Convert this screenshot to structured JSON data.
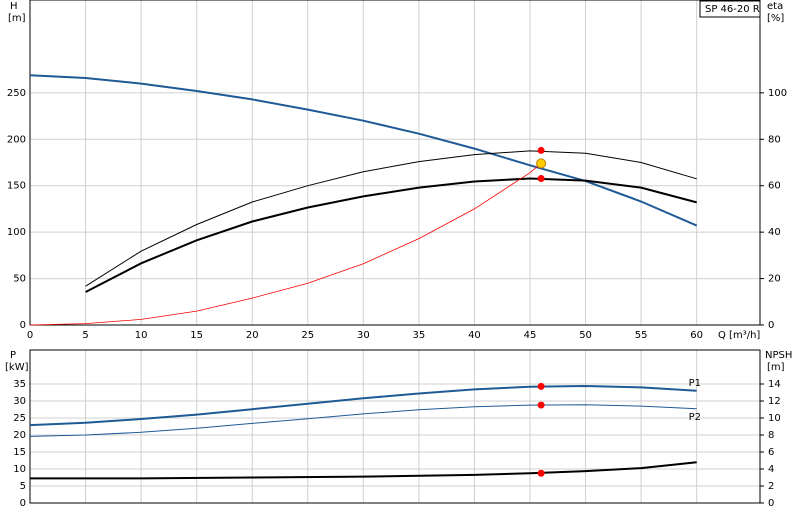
{
  "chart_data": [
    {
      "type": "line",
      "title": "SP 46-20 R",
      "y_label": "H",
      "y_unit": "[m]",
      "y2_label": "eta",
      "y2_unit": "[%]",
      "x_label": "Q [m³/h]",
      "xlim": [
        0,
        65.7
      ],
      "xticks": [
        0,
        5,
        10,
        15,
        20,
        25,
        30,
        35,
        40,
        45,
        50,
        55,
        60
      ],
      "ylim": [
        0,
        350
      ],
      "yticks": [
        0,
        50,
        100,
        150,
        200,
        250
      ],
      "y2lim": [
        0,
        140
      ],
      "y2ticks": [
        0,
        20,
        40,
        60,
        80,
        100
      ],
      "grid": true,
      "series": [
        {
          "color": "#1f5a96",
          "width": 2,
          "x": [
            0,
            5,
            10,
            15,
            20,
            25,
            30,
            35,
            40,
            45,
            50,
            55,
            60
          ],
          "values": [
            269,
            266,
            260,
            252,
            243,
            232,
            220,
            206,
            190,
            172,
            155,
            133,
            107
          ]
        },
        {
          "color": "#000000",
          "width": 1,
          "axis": "y2",
          "x": [
            5,
            10,
            15,
            20,
            25,
            30,
            35,
            40,
            45,
            50,
            55,
            60
          ],
          "values": [
            16.7,
            31.8,
            43.3,
            53,
            60,
            66,
            70.4,
            73.4,
            75,
            74,
            70,
            63
          ]
        },
        {
          "color": "#000000",
          "width": 2,
          "axis": "y2",
          "x": [
            5,
            10,
            15,
            20,
            25,
            30,
            35,
            40,
            45,
            50,
            55,
            60
          ],
          "values": [
            14.2,
            26.6,
            36.5,
            44.6,
            50.6,
            55.4,
            59.2,
            61.8,
            63.1,
            62.2,
            59.2,
            52.8
          ]
        },
        {
          "color": "#ff0000",
          "width": 0.8,
          "x": [
            0,
            5,
            10,
            15,
            20,
            25,
            30,
            35,
            40,
            45,
            46
          ],
          "values": [
            0,
            1.5,
            6,
            15,
            29,
            45,
            66,
            93,
            125,
            164,
            174
          ]
        }
      ],
      "markers": [
        {
          "x": 46,
          "y": 75.2,
          "axis": "y2",
          "color": "#ff0000"
        },
        {
          "x": 46,
          "y": 63.1,
          "axis": "y2",
          "color": "#ff0000"
        },
        {
          "x": 46,
          "y": 174,
          "color": "#ffcc00"
        }
      ]
    },
    {
      "type": "line",
      "y_label": "P",
      "y_unit": "[kW]",
      "y2_label": "NPSH",
      "y2_unit": "[m]",
      "xlim": [
        0,
        65.7
      ],
      "ylim": [
        0,
        45
      ],
      "yticks": [
        0,
        5,
        10,
        15,
        20,
        25,
        30,
        35
      ],
      "y2lim": [
        0,
        18
      ],
      "y2ticks": [
        0,
        2,
        4,
        6,
        8,
        10,
        12,
        14
      ],
      "grid": true,
      "series": [
        {
          "name": "P1",
          "color": "#1f5a96",
          "width": 2,
          "x": [
            0,
            5,
            10,
            15,
            20,
            25,
            30,
            35,
            40,
            45,
            50,
            55,
            60
          ],
          "values": [
            22.9,
            23.6,
            24.7,
            26,
            27.6,
            29.2,
            30.8,
            32.2,
            33.4,
            34.2,
            34.4,
            34,
            33
          ]
        },
        {
          "name": "P2",
          "color": "#1f5a96",
          "width": 1,
          "x": [
            0,
            5,
            10,
            15,
            20,
            25,
            30,
            35,
            40,
            45,
            50,
            55,
            60
          ],
          "values": [
            19.6,
            20,
            20.8,
            22,
            23.4,
            24.8,
            26.2,
            27.4,
            28.3,
            28.8,
            28.9,
            28.5,
            27.7
          ]
        },
        {
          "color": "#000000",
          "width": 2,
          "axis": "y2",
          "x": [
            0,
            10,
            20,
            30,
            40,
            45,
            50,
            55,
            60
          ],
          "values": [
            2.9,
            2.9,
            3,
            3.1,
            3.3,
            3.5,
            3.75,
            4.1,
            4.8
          ]
        }
      ],
      "markers": [
        {
          "x": 46,
          "y": 34.3,
          "color": "#ff0000"
        },
        {
          "x": 46,
          "y": 28.8,
          "color": "#ff0000"
        },
        {
          "x": 46,
          "y": 3.5,
          "axis": "y2",
          "color": "#ff0000"
        }
      ]
    }
  ]
}
